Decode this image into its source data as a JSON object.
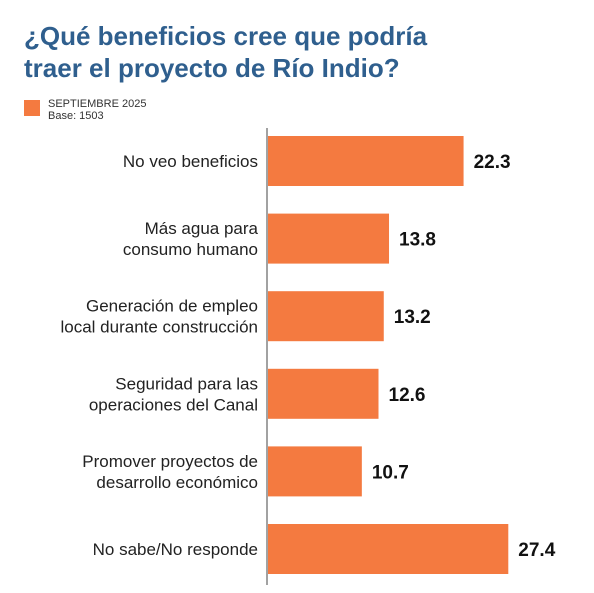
{
  "title_line1": "¿Qué beneficios cree que podría",
  "title_line2": "traer el proyecto de Río Indio?",
  "legend": {
    "series": "SEPTIEMBRE 2025",
    "base": "Base: 1503"
  },
  "colors": {
    "bar": "#f47a40",
    "title": "#2f5f8e",
    "axis": "#444444"
  },
  "chart_data": {
    "type": "bar",
    "orientation": "horizontal",
    "categories": [
      [
        "No veo beneficios"
      ],
      [
        "Más agua para",
        "consumo humano"
      ],
      [
        "Generación de empleo",
        "local durante construcción"
      ],
      [
        "Seguridad para las",
        "operaciones del Canal"
      ],
      [
        "Promover proyectos de",
        "desarrollo económico"
      ],
      [
        "No sabe/No responde"
      ]
    ],
    "values": [
      22.3,
      13.8,
      13.2,
      12.6,
      10.7,
      27.4
    ],
    "value_labels": [
      "22.3",
      "13.8",
      "13.2",
      "12.6",
      "10.7",
      "27.4"
    ],
    "series": [
      {
        "name": "SEPTIEMBRE 2025"
      }
    ],
    "legend_position": "top-left",
    "grid": false
  }
}
